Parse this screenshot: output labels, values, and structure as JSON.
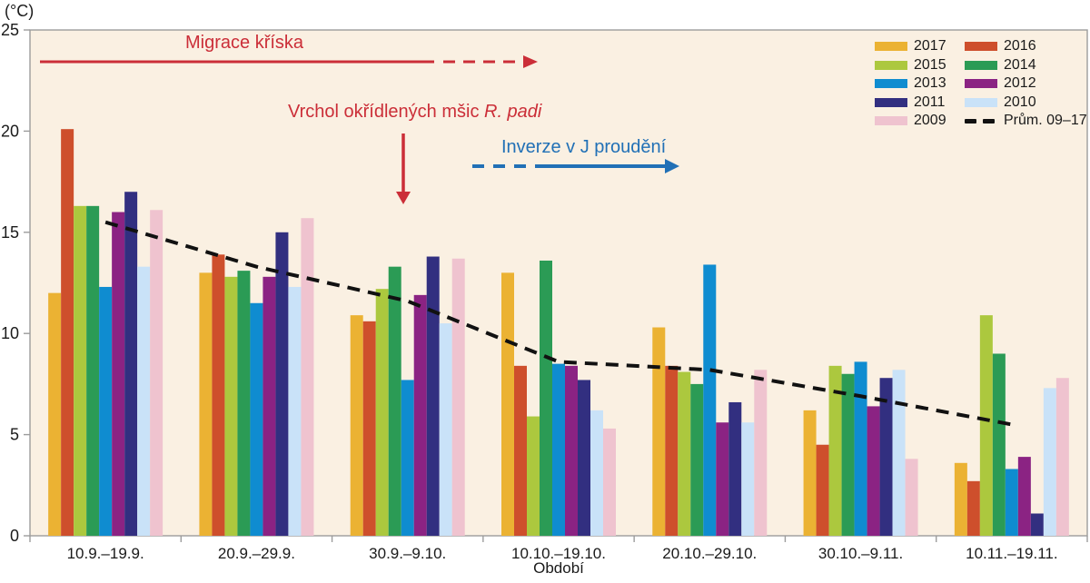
{
  "chart": {
    "unit_label": "(°C)",
    "background": "#FAF0E2",
    "axis_color": "#9C9C9C",
    "tick_label_color": "#1a1a1a"
  },
  "chart_data": {
    "type": "bar",
    "title": "",
    "xlabel": "Období",
    "ylabel": "(°C)",
    "ylim": [
      0,
      25
    ],
    "yticks": [
      0,
      5,
      10,
      15,
      20,
      25
    ],
    "grid": false,
    "legend_position": "top-right-inside",
    "categories": [
      "10.9.–19.9.",
      "20.9.–29.9.",
      "30.9.–9.10.",
      "10.10.–19.10.",
      "20.10.–29.10.",
      "30.10.–9.11.",
      "10.11.–19.11."
    ],
    "series": [
      {
        "name": "2017",
        "color": "#EBB233",
        "values": [
          12.0,
          13.0,
          10.9,
          13.0,
          10.3,
          6.2,
          3.6
        ]
      },
      {
        "name": "2016",
        "color": "#CE4F2C",
        "values": [
          20.1,
          13.9,
          10.6,
          8.4,
          8.4,
          4.5,
          2.7
        ]
      },
      {
        "name": "2015",
        "color": "#ACC83E",
        "values": [
          16.3,
          12.8,
          12.2,
          5.9,
          8.1,
          8.4,
          10.9
        ]
      },
      {
        "name": "2014",
        "color": "#2B9B55",
        "values": [
          16.3,
          13.1,
          13.3,
          13.6,
          7.5,
          8.0,
          9.0
        ]
      },
      {
        "name": "2013",
        "color": "#0F8CD0",
        "values": [
          12.3,
          11.5,
          7.7,
          8.5,
          13.4,
          8.6,
          3.3
        ]
      },
      {
        "name": "2012",
        "color": "#8B2383",
        "values": [
          16.0,
          12.8,
          11.9,
          8.4,
          5.6,
          6.4,
          3.9
        ]
      },
      {
        "name": "2011",
        "color": "#322F80",
        "values": [
          17.0,
          15.0,
          13.8,
          7.7,
          6.6,
          7.8,
          1.1
        ]
      },
      {
        "name": "2010",
        "color": "#C9E2F8",
        "values": [
          13.3,
          12.3,
          10.5,
          6.2,
          5.6,
          8.2,
          7.3
        ]
      },
      {
        "name": "2009",
        "color": "#EFC3CF",
        "values": [
          16.1,
          15.7,
          13.7,
          5.3,
          8.2,
          3.8,
          7.8
        ]
      }
    ],
    "average_line": {
      "name": "Prům. 09–17",
      "color": "#111111",
      "style": "dashed",
      "values": [
        15.5,
        13.3,
        11.6,
        8.6,
        8.2,
        6.9,
        5.5
      ]
    }
  },
  "legend": {
    "items": [
      {
        "label": "2017",
        "color": "#EBB233",
        "type": "swatch"
      },
      {
        "label": "2016",
        "color": "#CE4F2C",
        "type": "swatch"
      },
      {
        "label": "2015",
        "color": "#ACC83E",
        "type": "swatch"
      },
      {
        "label": "2014",
        "color": "#2B9B55",
        "type": "swatch"
      },
      {
        "label": "2013",
        "color": "#0F8CD0",
        "type": "swatch"
      },
      {
        "label": "2012",
        "color": "#8B2383",
        "type": "swatch"
      },
      {
        "label": "2011",
        "color": "#322F80",
        "type": "swatch"
      },
      {
        "label": "2010",
        "color": "#C9E2F8",
        "type": "swatch"
      },
      {
        "label": "2009",
        "color": "#EFC3CF",
        "type": "swatch"
      },
      {
        "label": "Prům. 09–17",
        "color": "#111111",
        "type": "dash"
      }
    ]
  },
  "annotations": {
    "migrace": {
      "text": "Migrace kříska",
      "color": "#CB2E38"
    },
    "vrchol": {
      "text_prefix": "Vrchol okřídlených mšic ",
      "text_italic": "R. padi",
      "color": "#CB2E38"
    },
    "inverze": {
      "text": "Inverze v J proudění",
      "color": "#2170B6"
    }
  }
}
